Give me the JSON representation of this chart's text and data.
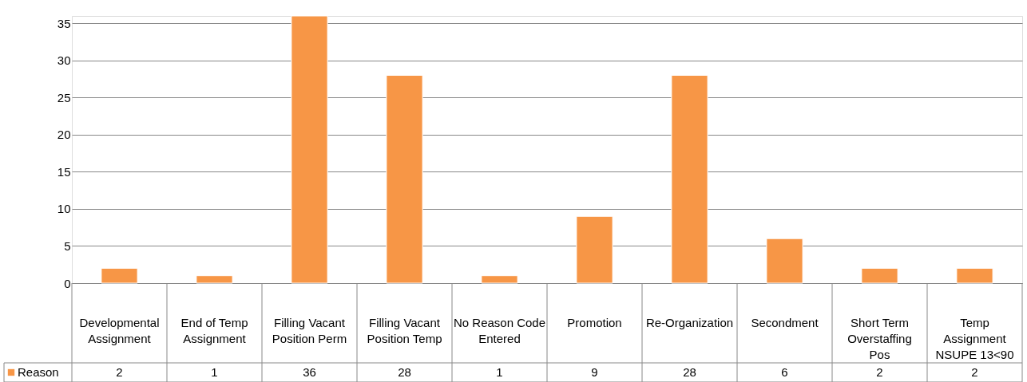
{
  "chart_data": {
    "type": "bar",
    "categories": [
      "Developmental Assignment",
      "End of Temp Assignment",
      "Filling Vacant Position Perm",
      "Filling Vacant Position Temp",
      "No Reason Code Entered",
      "Promotion",
      "Re-Organization",
      "Secondment",
      "Short Term Overstaffing Pos",
      "Temp Assignment NSUPE 13<90"
    ],
    "series": [
      {
        "name": "Reason",
        "color": "#f79646",
        "values": [
          2,
          1,
          36,
          28,
          1,
          9,
          28,
          6,
          2,
          2
        ]
      }
    ],
    "ylim": [
      0,
      36
    ],
    "yticks": [
      0,
      5,
      10,
      15,
      20,
      25,
      30,
      35
    ],
    "grid": "y",
    "data_labels": true,
    "legend": "bottom left"
  }
}
